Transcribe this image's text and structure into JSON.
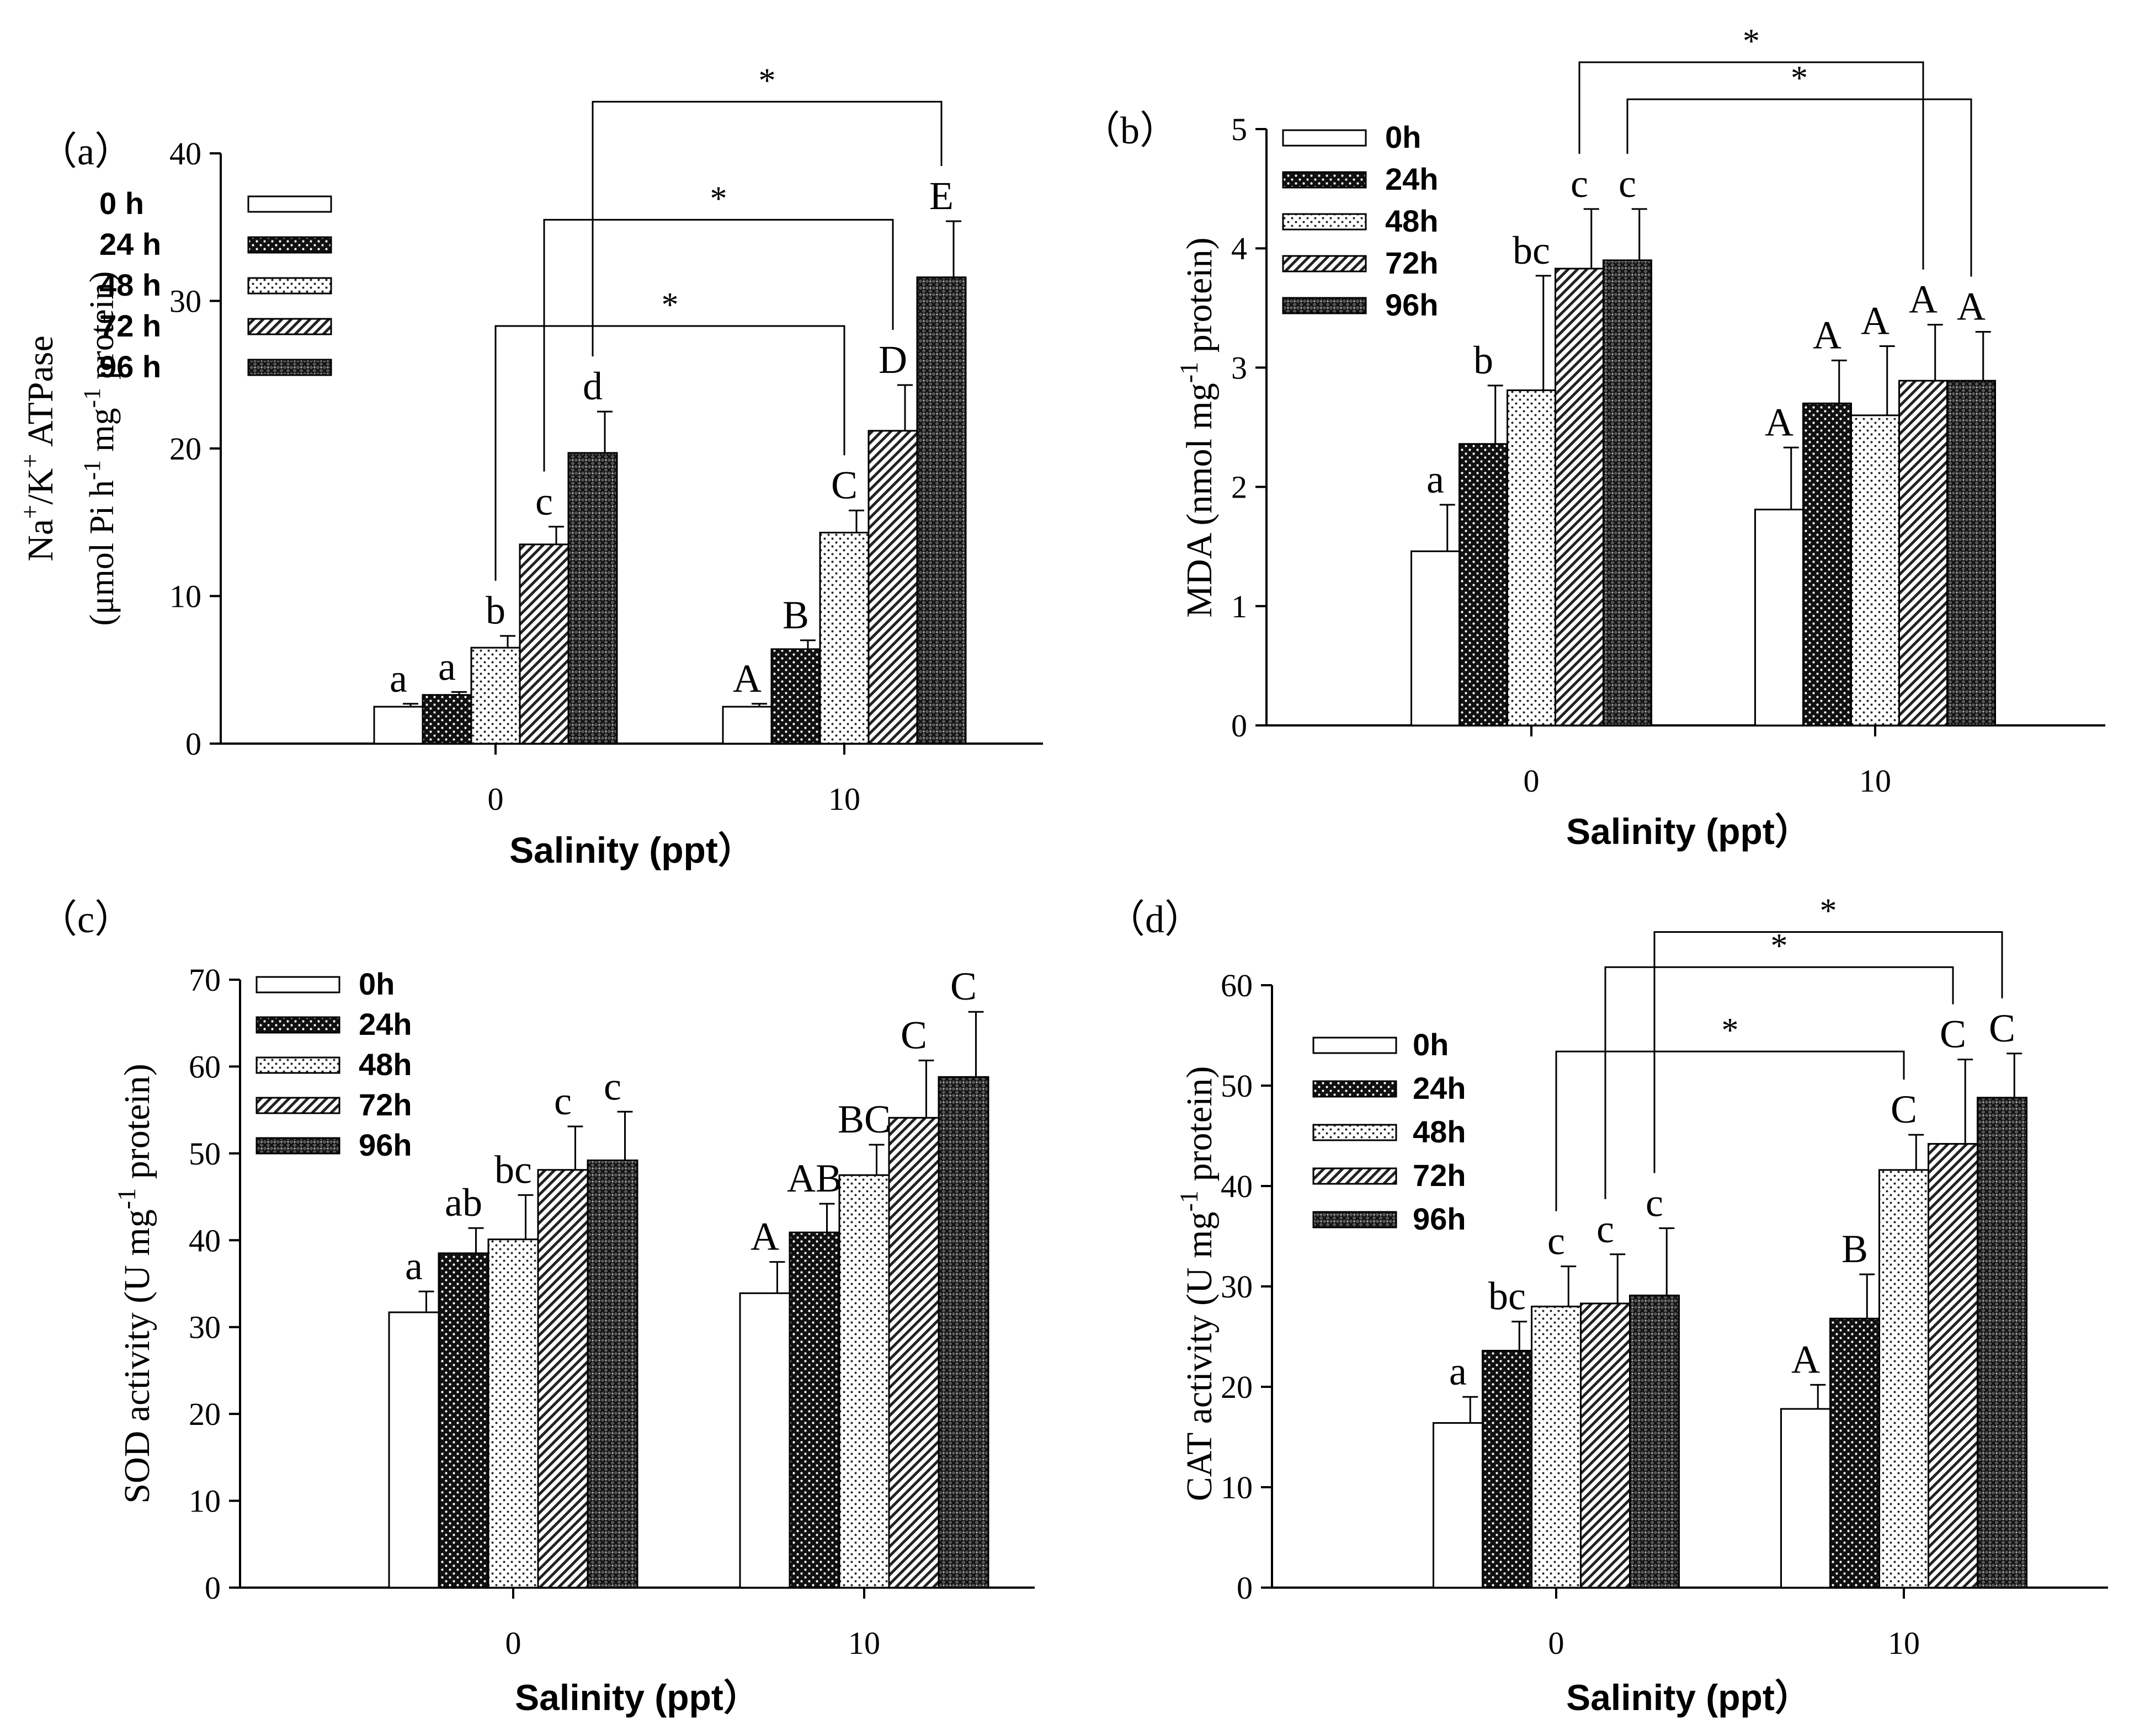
{
  "figure": {
    "series_names": [
      "0 h",
      "24 h",
      "48 h",
      "72 h",
      "96 h"
    ],
    "pattern_colors": {
      "bar_stroke": "#000000",
      "background": "#ffffff"
    }
  },
  "chart_data": [
    {
      "type": "bar",
      "panel_label": "（a）",
      "xlabel": "Salinity (ppt）",
      "ylabel_parts": [
        "Na",
        "+",
        "/K",
        "+",
        " ATP",
        "ase"
      ],
      "ylabel_line2_parts": [
        "(μmol Pi h",
        "-1",
        " mg",
        "-1",
        " protein)"
      ],
      "categories": [
        "0",
        "10"
      ],
      "legend_labels": [
        "0 h",
        "24 h",
        "48 h",
        "72 h",
        "96 h"
      ],
      "ylim": [
        0,
        40
      ],
      "yticks": [
        "0",
        "10",
        "20",
        "30",
        "40"
      ],
      "series": [
        {
          "name": "0 h",
          "values": [
            2.5,
            2.5
          ],
          "errors": [
            0.2,
            0.2
          ],
          "letters": [
            "a",
            "A"
          ]
        },
        {
          "name": "24 h",
          "values": [
            3.3,
            6.4
          ],
          "errors": [
            0.2,
            0.6
          ],
          "letters": [
            "a",
            "B"
          ]
        },
        {
          "name": "48 h",
          "values": [
            6.5,
            14.3
          ],
          "errors": [
            0.8,
            1.5
          ],
          "letters": [
            "b",
            "C"
          ]
        },
        {
          "name": "72 h",
          "values": [
            13.5,
            21.2
          ],
          "errors": [
            1.2,
            3.1
          ],
          "letters": [
            "c",
            "D"
          ]
        },
        {
          "name": "96 h",
          "values": [
            19.7,
            31.6
          ],
          "errors": [
            2.8,
            3.8
          ],
          "letters": [
            "d",
            "E"
          ]
        }
      ],
      "significance": [
        {
          "from_cat": 0,
          "to_cat": 1,
          "series": 2,
          "top": 28.3,
          "label": "*"
        },
        {
          "from_cat": 0,
          "to_cat": 1,
          "series": 3,
          "top": 35.5,
          "label": "*"
        },
        {
          "from_cat": 0,
          "to_cat": 1,
          "series": 4,
          "top": 43.5,
          "label": "*"
        }
      ]
    },
    {
      "type": "bar",
      "panel_label": "（b）",
      "xlabel": "Salinity (ppt）",
      "ylabel_parts": [
        "MDA (nmol mg",
        "-1",
        " protein)"
      ],
      "categories": [
        "0",
        "10"
      ],
      "legend_labels": [
        "0h",
        "24h",
        "48h",
        "72h",
        "96h"
      ],
      "ylim": [
        0,
        5
      ],
      "yticks": [
        "0",
        "1",
        "2",
        "3",
        "4",
        "5"
      ],
      "series": [
        {
          "name": "0h",
          "values": [
            1.46,
            1.81
          ],
          "errors": [
            0.39,
            0.52
          ],
          "letters": [
            "a",
            "A"
          ]
        },
        {
          "name": "24h",
          "values": [
            2.36,
            2.7
          ],
          "errors": [
            0.49,
            0.36
          ],
          "letters": [
            "b",
            "A"
          ]
        },
        {
          "name": "48h",
          "values": [
            2.81,
            2.6
          ],
          "errors": [
            0.96,
            0.58
          ],
          "letters": [
            "bc",
            "A"
          ]
        },
        {
          "name": "72h",
          "values": [
            3.83,
            2.89
          ],
          "errors": [
            0.5,
            0.47
          ],
          "letters": [
            "c",
            "A"
          ]
        },
        {
          "name": "96h",
          "values": [
            3.9,
            2.89
          ],
          "errors": [
            0.43,
            0.41
          ],
          "letters": [
            "c",
            "A"
          ]
        }
      ],
      "significance": [
        {
          "from_cat": 0,
          "to_cat": 1,
          "series": 3,
          "top": 5.56,
          "label": "*"
        },
        {
          "from_cat": 0,
          "to_cat": 1,
          "series": 4,
          "top": 5.25,
          "label": "*"
        }
      ]
    },
    {
      "type": "bar",
      "panel_label": "（c）",
      "xlabel": "Salinity (ppt）",
      "ylabel_parts": [
        "SOD activity (U mg",
        "-1",
        " protein)"
      ],
      "categories": [
        "0",
        "10"
      ],
      "legend_labels": [
        "0h",
        "24h",
        "48h",
        "72h",
        "96h"
      ],
      "ylim": [
        0,
        70
      ],
      "yticks": [
        "0",
        "10",
        "20",
        "30",
        "40",
        "50",
        "60",
        "70"
      ],
      "series": [
        {
          "name": "0h",
          "values": [
            31.7,
            33.9
          ],
          "errors": [
            2.4,
            3.6
          ],
          "letters": [
            "a",
            "A"
          ]
        },
        {
          "name": "24h",
          "values": [
            38.5,
            40.9
          ],
          "errors": [
            2.9,
            3.3
          ],
          "letters": [
            "ab",
            "AB"
          ]
        },
        {
          "name": "48h",
          "values": [
            40.1,
            47.5
          ],
          "errors": [
            5.1,
            3.5
          ],
          "letters": [
            "bc",
            "BC"
          ]
        },
        {
          "name": "72h",
          "values": [
            48.1,
            54.1
          ],
          "errors": [
            5.0,
            6.6
          ],
          "letters": [
            "c",
            "C"
          ]
        },
        {
          "name": "96h",
          "values": [
            49.2,
            58.8
          ],
          "errors": [
            5.6,
            7.5
          ],
          "letters": [
            "c",
            "C"
          ]
        }
      ],
      "significance": []
    },
    {
      "type": "bar",
      "panel_label": "（d）",
      "xlabel": "Salinity (ppt）",
      "ylabel_parts": [
        "CAT activity (U mg",
        "-1",
        " protein)"
      ],
      "categories": [
        "0",
        "10"
      ],
      "legend_labels": [
        "0h",
        "24h",
        "48h",
        "72h",
        "96h"
      ],
      "ylim": [
        0,
        60
      ],
      "yticks": [
        "0",
        "10",
        "20",
        "30",
        "40",
        "50",
        "60"
      ],
      "series": [
        {
          "name": "0h",
          "values": [
            16.4,
            17.8
          ],
          "errors": [
            2.6,
            2.4
          ],
          "letters": [
            "a",
            "A"
          ]
        },
        {
          "name": "24h",
          "values": [
            23.6,
            26.8
          ],
          "errors": [
            2.9,
            4.4
          ],
          "letters": [
            "bc",
            "B"
          ]
        },
        {
          "name": "48h",
          "values": [
            28.0,
            41.6
          ],
          "errors": [
            4.0,
            3.5
          ],
          "letters": [
            "c",
            "C"
          ]
        },
        {
          "name": "72h",
          "values": [
            28.3,
            44.2
          ],
          "errors": [
            4.9,
            8.4
          ],
          "letters": [
            "c",
            "C"
          ]
        },
        {
          "name": "96h",
          "values": [
            29.1,
            48.8
          ],
          "errors": [
            6.7,
            4.4
          ],
          "letters": [
            "c",
            "C"
          ]
        }
      ],
      "significance": [
        {
          "from_cat": 0,
          "to_cat": 1,
          "series": 2,
          "top": 53.4,
          "label": "*"
        },
        {
          "from_cat": 0,
          "to_cat": 1,
          "series": 3,
          "top": 61.8,
          "label": "*"
        },
        {
          "from_cat": 0,
          "to_cat": 1,
          "series": 4,
          "top": 65.3,
          "label": "*"
        }
      ]
    }
  ]
}
